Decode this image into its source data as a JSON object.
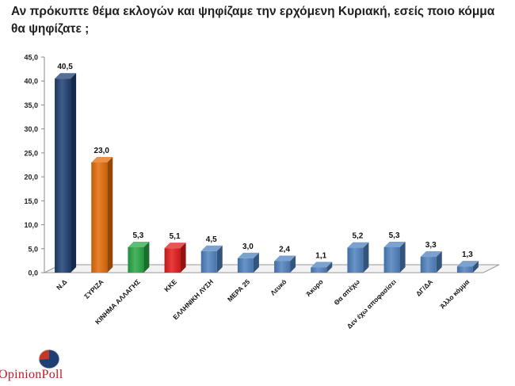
{
  "title": "Αν πρόκυπτε θέμα εκλογών και ψηφίζαμε την ερχόμενη Κυριακή, εσείς ποιο κόμμα θα ψηφίζατε ;",
  "logo": {
    "text": "OpinionPoll",
    "icon": "pie-logo-icon"
  },
  "colors": {
    "blue_dark": "#1f3f73",
    "blue": "#4f81bd",
    "orange": "#e36c09",
    "green": "#28a745",
    "red": "#e31b1b"
  },
  "chart_data": {
    "type": "bar",
    "title": "Αν πρόκυπτε θέμα εκλογών και ψηφίζαμε την ερχόμενη Κυριακή, εσείς ποιο κόμμα θα ψηφίζατε ;",
    "categories": [
      "Ν.Δ",
      "ΣΥΡΙΖΑ",
      "ΚΙΝΗΜΑ ΑΛΛΑΓΗΣ",
      "ΚΚΕ",
      "ΕΛΛΗΝΙΚΗ ΛΥΣΗ",
      "ΜΕΡΑ 25",
      "Λευκό",
      "Άκυρο",
      "Θα απέχω",
      "Δεν έχω αποφασίσει",
      "ΔΓ/ΔΑ",
      "Άλλο κόμμα"
    ],
    "values": [
      40.5,
      23.0,
      5.3,
      5.1,
      4.5,
      3.0,
      2.4,
      1.1,
      5.2,
      5.3,
      3.3,
      1.3
    ],
    "value_labels": [
      "40,5",
      "23,0",
      "5,3",
      "5,1",
      "4,5",
      "3,0",
      "2,4",
      "1,1",
      "5,2",
      "5,3",
      "3,3",
      "1,3"
    ],
    "bar_colors": [
      "#1f3f73",
      "#e36c09",
      "#28a745",
      "#e31b1b",
      "#4f81bd",
      "#4f81bd",
      "#4f81bd",
      "#4f81bd",
      "#4f81bd",
      "#4f81bd",
      "#4f81bd",
      "#4f81bd"
    ],
    "yticks": [
      "0,0",
      "5,0",
      "10,0",
      "15,0",
      "20,0",
      "25,0",
      "30,0",
      "35,0",
      "40,0",
      "45,0"
    ],
    "ylim": [
      0,
      45
    ],
    "xlabel": "",
    "ylabel": "",
    "grid": false,
    "legend": "none",
    "style": "3d"
  }
}
